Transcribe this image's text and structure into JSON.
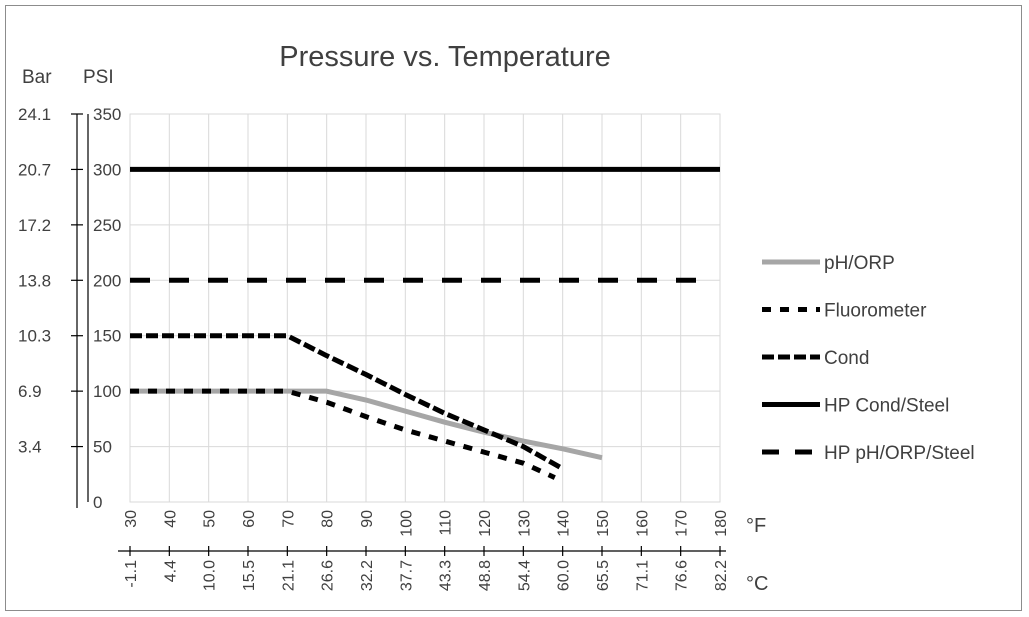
{
  "chart_data": {
    "type": "line",
    "title": "Pressure  vs. Temperature",
    "y_units": {
      "bar": "Bar",
      "psi": "PSI"
    },
    "x_units": {
      "fahrenheit": "°F",
      "celsius": "°C"
    },
    "psi_ticks": [
      "0",
      "50",
      "100",
      "150",
      "200",
      "250",
      "300",
      "350"
    ],
    "bar_ticks": [
      "3.4",
      "6.9",
      "10.3",
      "13.8",
      "17.2",
      "20.7",
      "24.1"
    ],
    "fahrenheit_ticks": [
      "30",
      "40",
      "50",
      "60",
      "70",
      "80",
      "90",
      "100",
      "110",
      "120",
      "130",
      "140",
      "150",
      "160",
      "170",
      "180"
    ],
    "celsius_ticks": [
      "-1.1",
      "4.4",
      "10.0",
      "15.5",
      "21.1",
      "26.6",
      "32.2",
      "37.7",
      "43.3",
      "48.8",
      "54.4",
      "60.0",
      "65.5",
      "71.1",
      "76.6",
      "82.2"
    ],
    "xlim": [
      30,
      180
    ],
    "ylim": [
      0,
      350
    ],
    "grid": true,
    "legend_position": "right",
    "series": [
      {
        "name": "pH/ORP",
        "style": "solid-gray",
        "color": "#a6a6a6",
        "x": [
          30,
          80,
          90,
          100,
          110,
          120,
          130,
          140,
          150
        ],
        "y": [
          100,
          100,
          92,
          82,
          72,
          63,
          55,
          48,
          40
        ]
      },
      {
        "name": "Fluorometer",
        "style": "dotted",
        "color": "#000000",
        "x": [
          30,
          70,
          80,
          90,
          100,
          110,
          120,
          130,
          138
        ],
        "y": [
          100,
          100,
          90,
          77,
          65,
          55,
          45,
          35,
          22
        ]
      },
      {
        "name": "Cond",
        "style": "dashed-heavy",
        "color": "#000000",
        "x": [
          30,
          70,
          80,
          90,
          100,
          110,
          120,
          130,
          140
        ],
        "y": [
          150,
          150,
          132,
          115,
          97,
          80,
          65,
          50,
          30
        ]
      },
      {
        "name": "HP Cond/Steel",
        "style": "solid",
        "color": "#000000",
        "x": [
          30,
          180
        ],
        "y": [
          300,
          300
        ]
      },
      {
        "name": "HP pH/ORP/Steel",
        "style": "long-dash",
        "color": "#000000",
        "x": [
          30,
          175
        ],
        "y": [
          200,
          200
        ]
      }
    ]
  }
}
